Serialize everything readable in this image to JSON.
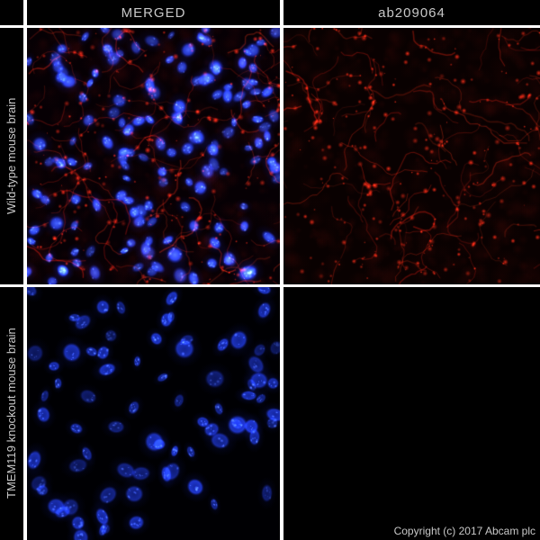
{
  "header": {
    "columns": [
      {
        "label": "MERGED"
      },
      {
        "label": "ab209064"
      }
    ]
  },
  "rows": [
    {
      "label": "Wild-type mouse brain"
    },
    {
      "label": "TMEM119 knockout mouse brain"
    }
  ],
  "footer": {
    "copyright": "Copyright (c) 2017 Abcam plc"
  },
  "colors": {
    "background": "#000000",
    "divider": "#ffffff",
    "header_text": "#c8c8c8",
    "row_label_text": "#c8c8c8",
    "copyright_text": "#c8c8c8",
    "dapi_blue": "#2e50f0",
    "stain_red": "#d2281e"
  },
  "panels": [
    {
      "id": "wildtype-merged",
      "canvas": "p-tl",
      "seed": 11,
      "background": "#060004",
      "channels": [
        "red",
        "dapi"
      ],
      "red_density": 1.0,
      "nuclei": {
        "count": 150,
        "brightness": 1.0,
        "scale": 1.0,
        "textured": false
      }
    },
    {
      "id": "wildtype-ab209064",
      "canvas": "p-tr",
      "seed": 22,
      "background": "#090101",
      "channels": [
        "red"
      ],
      "red_density": 1.05
    },
    {
      "id": "knockout-merged",
      "canvas": "p-bl",
      "seed": 33,
      "background": "#000003",
      "channels": [
        "dapi"
      ],
      "nuclei": {
        "count": 78,
        "brightness": 0.9,
        "scale": 1.15,
        "textured": true
      }
    },
    {
      "id": "knockout-ab209064",
      "canvas": "p-br",
      "seed": 44,
      "background": "#000000",
      "channels": []
    }
  ]
}
